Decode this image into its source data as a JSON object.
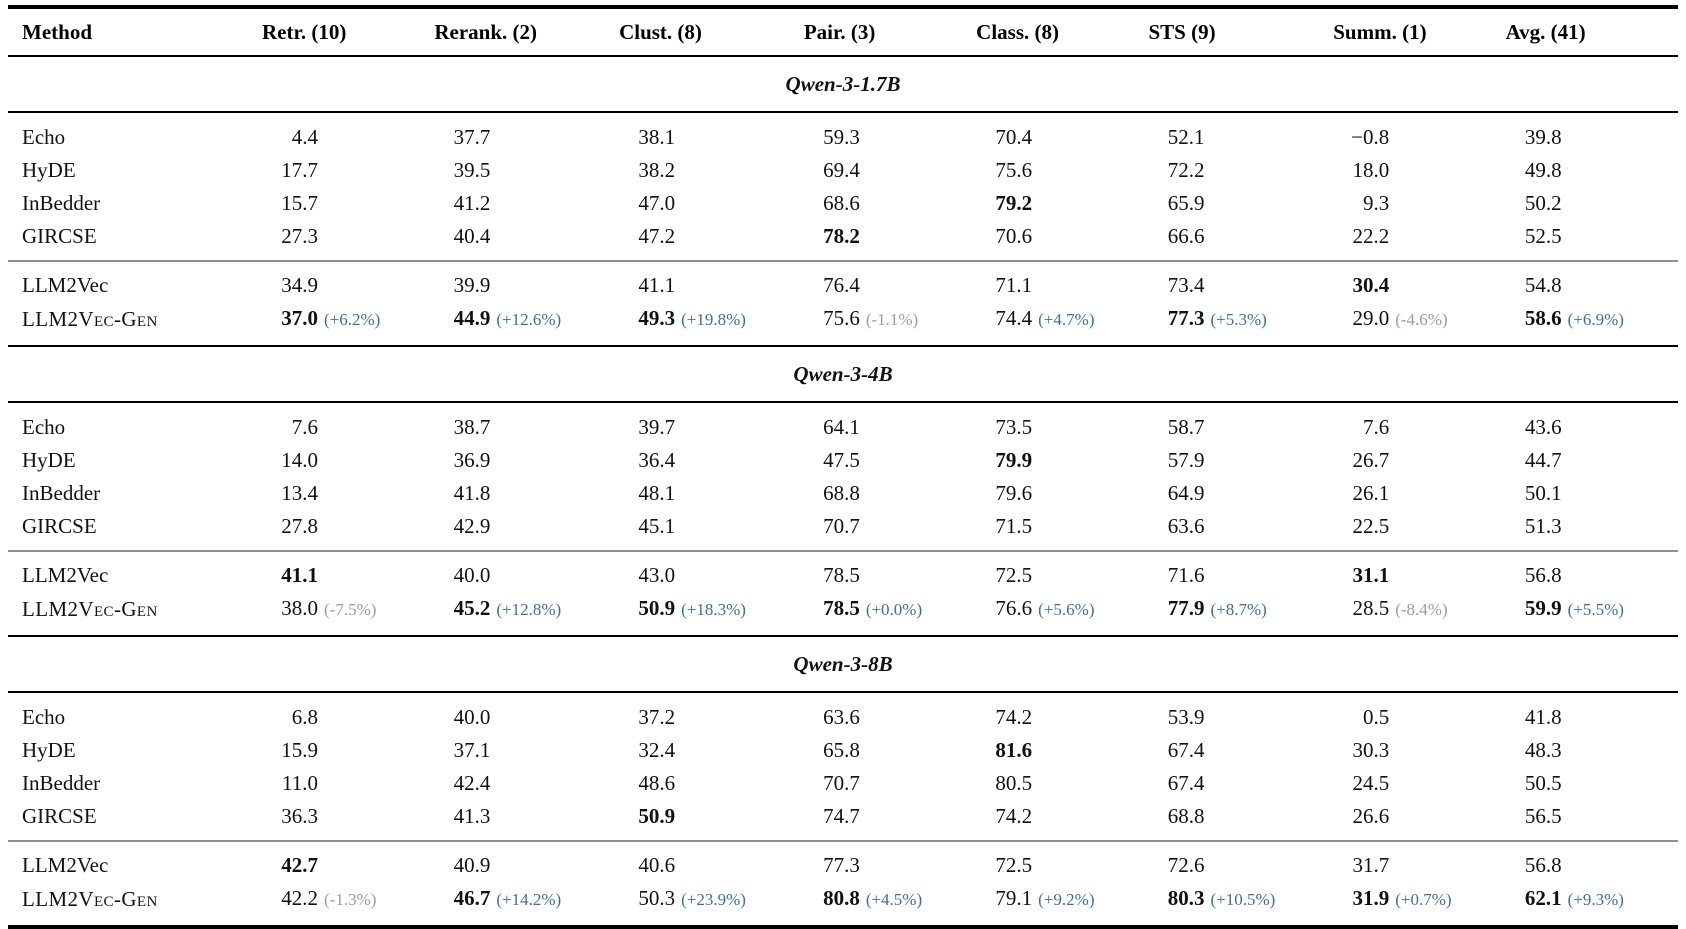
{
  "table": {
    "columns": [
      "Method",
      "Retr. (10)",
      "Rerank. (2)",
      "Clust. (8)",
      "Pair. (3)",
      "Class. (8)",
      "STS (9)",
      "Summ. (1)",
      "Avg. (41)"
    ],
    "colors": {
      "delta_positive": "#3e7190",
      "delta_negative": "#9b9b9b",
      "rule_black": "#000000",
      "rule_gray": "#8f8f8f"
    },
    "sections": [
      {
        "title": "Qwen-3-1.7B",
        "rows": [
          {
            "method": "Echo",
            "cells": [
              {
                "v": "4.4"
              },
              {
                "v": "37.7"
              },
              {
                "v": "38.1"
              },
              {
                "v": "59.3"
              },
              {
                "v": "70.4"
              },
              {
                "v": "52.1"
              },
              {
                "v": "−0.8"
              },
              {
                "v": "39.8"
              }
            ]
          },
          {
            "method": "HyDE",
            "cells": [
              {
                "v": "17.7"
              },
              {
                "v": "39.5"
              },
              {
                "v": "38.2"
              },
              {
                "v": "69.4"
              },
              {
                "v": "75.6"
              },
              {
                "v": "72.2"
              },
              {
                "v": "18.0"
              },
              {
                "v": "49.8"
              }
            ]
          },
          {
            "method": "InBedder",
            "cells": [
              {
                "v": "15.7"
              },
              {
                "v": "41.2"
              },
              {
                "v": "47.0"
              },
              {
                "v": "68.6"
              },
              {
                "v": "79.2",
                "b": true
              },
              {
                "v": "65.9"
              },
              {
                "v": "9.3"
              },
              {
                "v": "50.2"
              }
            ]
          },
          {
            "method": "GIRCSE",
            "cells": [
              {
                "v": "27.3"
              },
              {
                "v": "40.4"
              },
              {
                "v": "47.2"
              },
              {
                "v": "78.2",
                "b": true
              },
              {
                "v": "70.6"
              },
              {
                "v": "66.6"
              },
              {
                "v": "22.2"
              },
              {
                "v": "52.5"
              }
            ]
          },
          {
            "method": "LLM2Vec",
            "divider": true,
            "cells": [
              {
                "v": "34.9"
              },
              {
                "v": "39.9"
              },
              {
                "v": "41.1"
              },
              {
                "v": "76.4"
              },
              {
                "v": "71.1"
              },
              {
                "v": "73.4"
              },
              {
                "v": "30.4",
                "b": true
              },
              {
                "v": "54.8"
              }
            ]
          },
          {
            "method": "LLM2Vec-Gen",
            "smallcaps": true,
            "cells": [
              {
                "v": "37.0",
                "b": true,
                "d": "(+6.2%)"
              },
              {
                "v": "44.9",
                "b": true,
                "d": "(+12.6%)"
              },
              {
                "v": "49.3",
                "b": true,
                "d": "(+19.8%)"
              },
              {
                "v": "75.6",
                "d": "(-1.1%)",
                "dn": true
              },
              {
                "v": "74.4",
                "d": "(+4.7%)"
              },
              {
                "v": "77.3",
                "b": true,
                "d": "(+5.3%)"
              },
              {
                "v": "29.0",
                "d": "(-4.6%)",
                "dn": true
              },
              {
                "v": "58.6",
                "b": true,
                "d": "(+6.9%)"
              }
            ]
          }
        ]
      },
      {
        "title": "Qwen-3-4B",
        "rows": [
          {
            "method": "Echo",
            "cells": [
              {
                "v": "7.6"
              },
              {
                "v": "38.7"
              },
              {
                "v": "39.7"
              },
              {
                "v": "64.1"
              },
              {
                "v": "73.5"
              },
              {
                "v": "58.7"
              },
              {
                "v": "7.6"
              },
              {
                "v": "43.6"
              }
            ]
          },
          {
            "method": "HyDE",
            "cells": [
              {
                "v": "14.0"
              },
              {
                "v": "36.9"
              },
              {
                "v": "36.4"
              },
              {
                "v": "47.5"
              },
              {
                "v": "79.9",
                "b": true
              },
              {
                "v": "57.9"
              },
              {
                "v": "26.7"
              },
              {
                "v": "44.7"
              }
            ]
          },
          {
            "method": "InBedder",
            "cells": [
              {
                "v": "13.4"
              },
              {
                "v": "41.8"
              },
              {
                "v": "48.1"
              },
              {
                "v": "68.8"
              },
              {
                "v": "79.6"
              },
              {
                "v": "64.9"
              },
              {
                "v": "26.1"
              },
              {
                "v": "50.1"
              }
            ]
          },
          {
            "method": "GIRCSE",
            "cells": [
              {
                "v": "27.8"
              },
              {
                "v": "42.9"
              },
              {
                "v": "45.1"
              },
              {
                "v": "70.7"
              },
              {
                "v": "71.5"
              },
              {
                "v": "63.6"
              },
              {
                "v": "22.5"
              },
              {
                "v": "51.3"
              }
            ]
          },
          {
            "method": "LLM2Vec",
            "divider": true,
            "cells": [
              {
                "v": "41.1",
                "b": true
              },
              {
                "v": "40.0"
              },
              {
                "v": "43.0"
              },
              {
                "v": "78.5"
              },
              {
                "v": "72.5"
              },
              {
                "v": "71.6"
              },
              {
                "v": "31.1",
                "b": true
              },
              {
                "v": "56.8"
              }
            ]
          },
          {
            "method": "LLM2Vec-Gen",
            "smallcaps": true,
            "cells": [
              {
                "v": "38.0",
                "d": "(-7.5%)",
                "dn": true
              },
              {
                "v": "45.2",
                "b": true,
                "d": "(+12.8%)"
              },
              {
                "v": "50.9",
                "b": true,
                "d": "(+18.3%)"
              },
              {
                "v": "78.5",
                "b": true,
                "d": "(+0.0%)"
              },
              {
                "v": "76.6",
                "d": "(+5.6%)"
              },
              {
                "v": "77.9",
                "b": true,
                "d": "(+8.7%)"
              },
              {
                "v": "28.5",
                "d": "(-8.4%)",
                "dn": true
              },
              {
                "v": "59.9",
                "b": true,
                "d": "(+5.5%)"
              }
            ]
          }
        ]
      },
      {
        "title": "Qwen-3-8B",
        "rows": [
          {
            "method": "Echo",
            "cells": [
              {
                "v": "6.8"
              },
              {
                "v": "40.0"
              },
              {
                "v": "37.2"
              },
              {
                "v": "63.6"
              },
              {
                "v": "74.2"
              },
              {
                "v": "53.9"
              },
              {
                "v": "0.5"
              },
              {
                "v": "41.8"
              }
            ]
          },
          {
            "method": "HyDE",
            "cells": [
              {
                "v": "15.9"
              },
              {
                "v": "37.1"
              },
              {
                "v": "32.4"
              },
              {
                "v": "65.8"
              },
              {
                "v": "81.6",
                "b": true
              },
              {
                "v": "67.4"
              },
              {
                "v": "30.3"
              },
              {
                "v": "48.3"
              }
            ]
          },
          {
            "method": "InBedder",
            "cells": [
              {
                "v": "11.0"
              },
              {
                "v": "42.4"
              },
              {
                "v": "48.6"
              },
              {
                "v": "70.7"
              },
              {
                "v": "80.5"
              },
              {
                "v": "67.4"
              },
              {
                "v": "24.5"
              },
              {
                "v": "50.5"
              }
            ]
          },
          {
            "method": "GIRCSE",
            "cells": [
              {
                "v": "36.3"
              },
              {
                "v": "41.3"
              },
              {
                "v": "50.9",
                "b": true
              },
              {
                "v": "74.7"
              },
              {
                "v": "74.2"
              },
              {
                "v": "68.8"
              },
              {
                "v": "26.6"
              },
              {
                "v": "56.5"
              }
            ]
          },
          {
            "method": "LLM2Vec",
            "divider": true,
            "cells": [
              {
                "v": "42.7",
                "b": true
              },
              {
                "v": "40.9"
              },
              {
                "v": "40.6"
              },
              {
                "v": "77.3"
              },
              {
                "v": "72.5"
              },
              {
                "v": "72.6"
              },
              {
                "v": "31.7"
              },
              {
                "v": "56.8"
              }
            ]
          },
          {
            "method": "LLM2Vec-Gen",
            "smallcaps": true,
            "cells": [
              {
                "v": "42.2",
                "d": "(-1.3%)",
                "dn": true
              },
              {
                "v": "46.7",
                "b": true,
                "d": "(+14.2%)"
              },
              {
                "v": "50.3",
                "d": "(+23.9%)"
              },
              {
                "v": "80.8",
                "b": true,
                "d": "(+4.5%)"
              },
              {
                "v": "79.1",
                "d": "(+9.2%)"
              },
              {
                "v": "80.3",
                "b": true,
                "d": "(+10.5%)"
              },
              {
                "v": "31.9",
                "b": true,
                "d": "(+0.7%)"
              },
              {
                "v": "62.1",
                "b": true,
                "d": "(+9.3%)"
              }
            ]
          }
        ]
      }
    ]
  }
}
